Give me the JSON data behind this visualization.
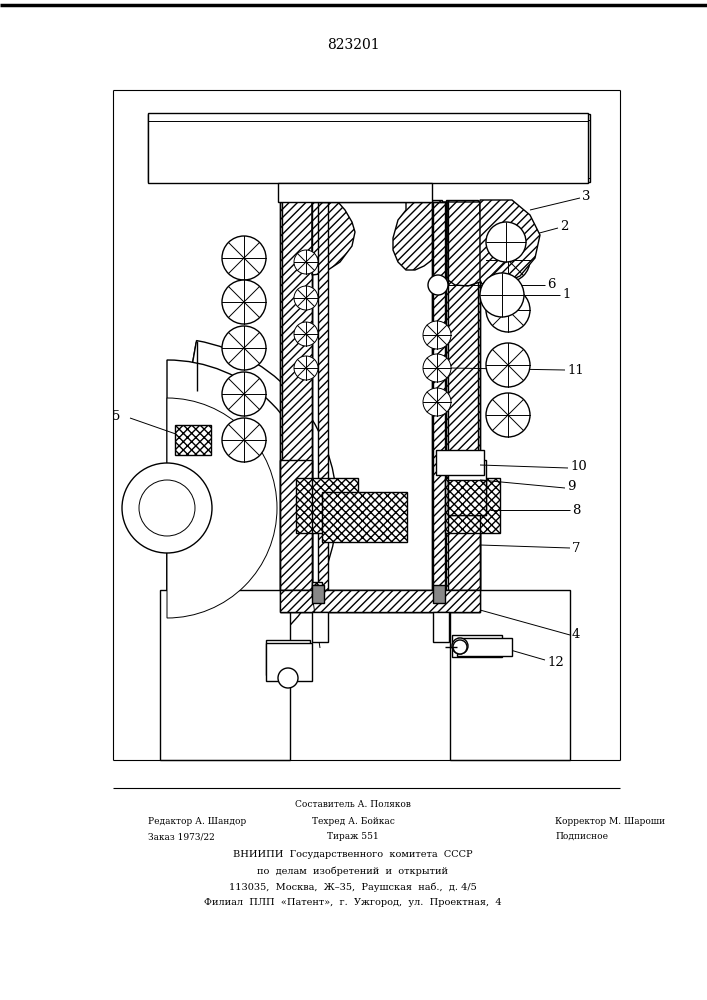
{
  "patent_number": "823201",
  "bg": "#ffffff",
  "lc": "#000000",
  "figure_width": 7.07,
  "figure_height": 10.0,
  "footer": {
    "line1": "Составитель А. Поляков",
    "line2_left": "Редактор А. Шандор",
    "line2_mid": "Техред А. Бойкас",
    "line2_right": "Корректор М. Шароши",
    "line3_left": "Заказ 1973/22",
    "line3_mid": "Тираж 551",
    "line3_right": "Подписное",
    "line4": "ВНИИПИ  Государственного  комитета  СССР",
    "line5": "по  делам  изобретений  и  открытий",
    "line6": "113035,  Москва,  Ж–35,  Раушская  наб.,  д. 4/5",
    "line7": "Филиал  ПЛП  «Патент»,  г.  Ужгород,  ул.  Проектная,  4"
  }
}
